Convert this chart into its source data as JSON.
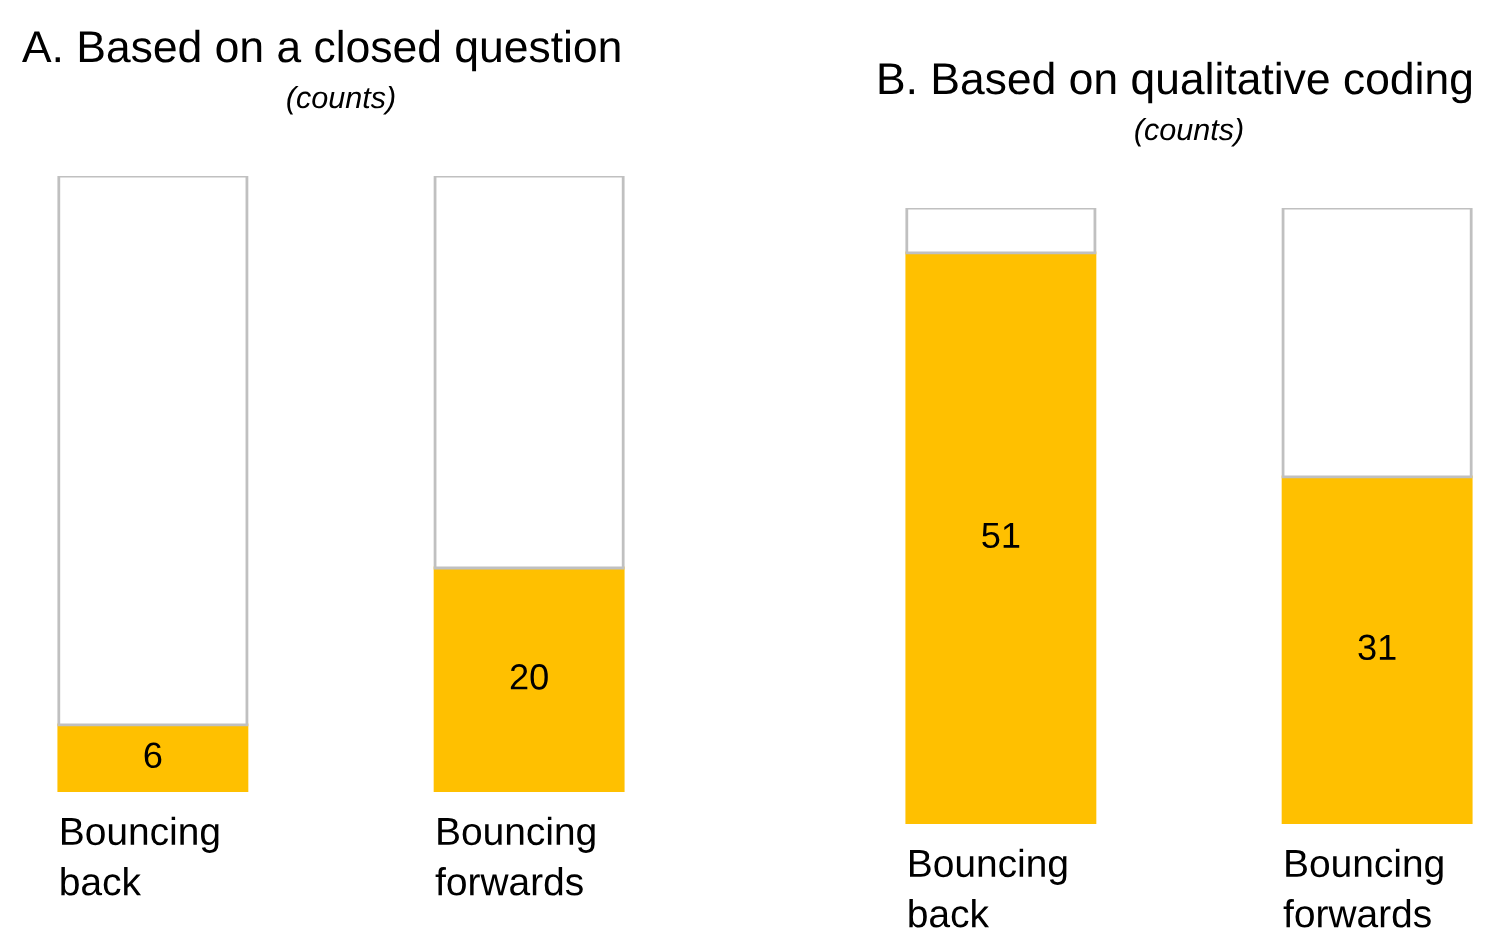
{
  "chart_data": [
    {
      "type": "bar",
      "title": "A. Based on a closed question",
      "subtitle": "(counts)",
      "stacked": true,
      "categories": [
        "Bouncing\nback",
        "Bouncing\nforwards"
      ],
      "series": [
        {
          "color": "#ffc000",
          "values": [
            6,
            20
          ],
          "value_labels": [
            "6",
            "20"
          ]
        },
        {
          "color": "#ffffff",
          "values": [
            49,
            35
          ]
        }
      ]
    },
    {
      "type": "bar",
      "title": "B. Based on qualitative coding",
      "subtitle": "(counts)",
      "stacked": true,
      "categories": [
        "Bouncing\nback",
        "Bouncing\nforwards"
      ],
      "series": [
        {
          "color": "#ffc000",
          "values": [
            51,
            31
          ],
          "value_labels": [
            "51",
            "31"
          ]
        },
        {
          "color": "#ffffff",
          "values": [
            4,
            24
          ]
        }
      ]
    }
  ]
}
